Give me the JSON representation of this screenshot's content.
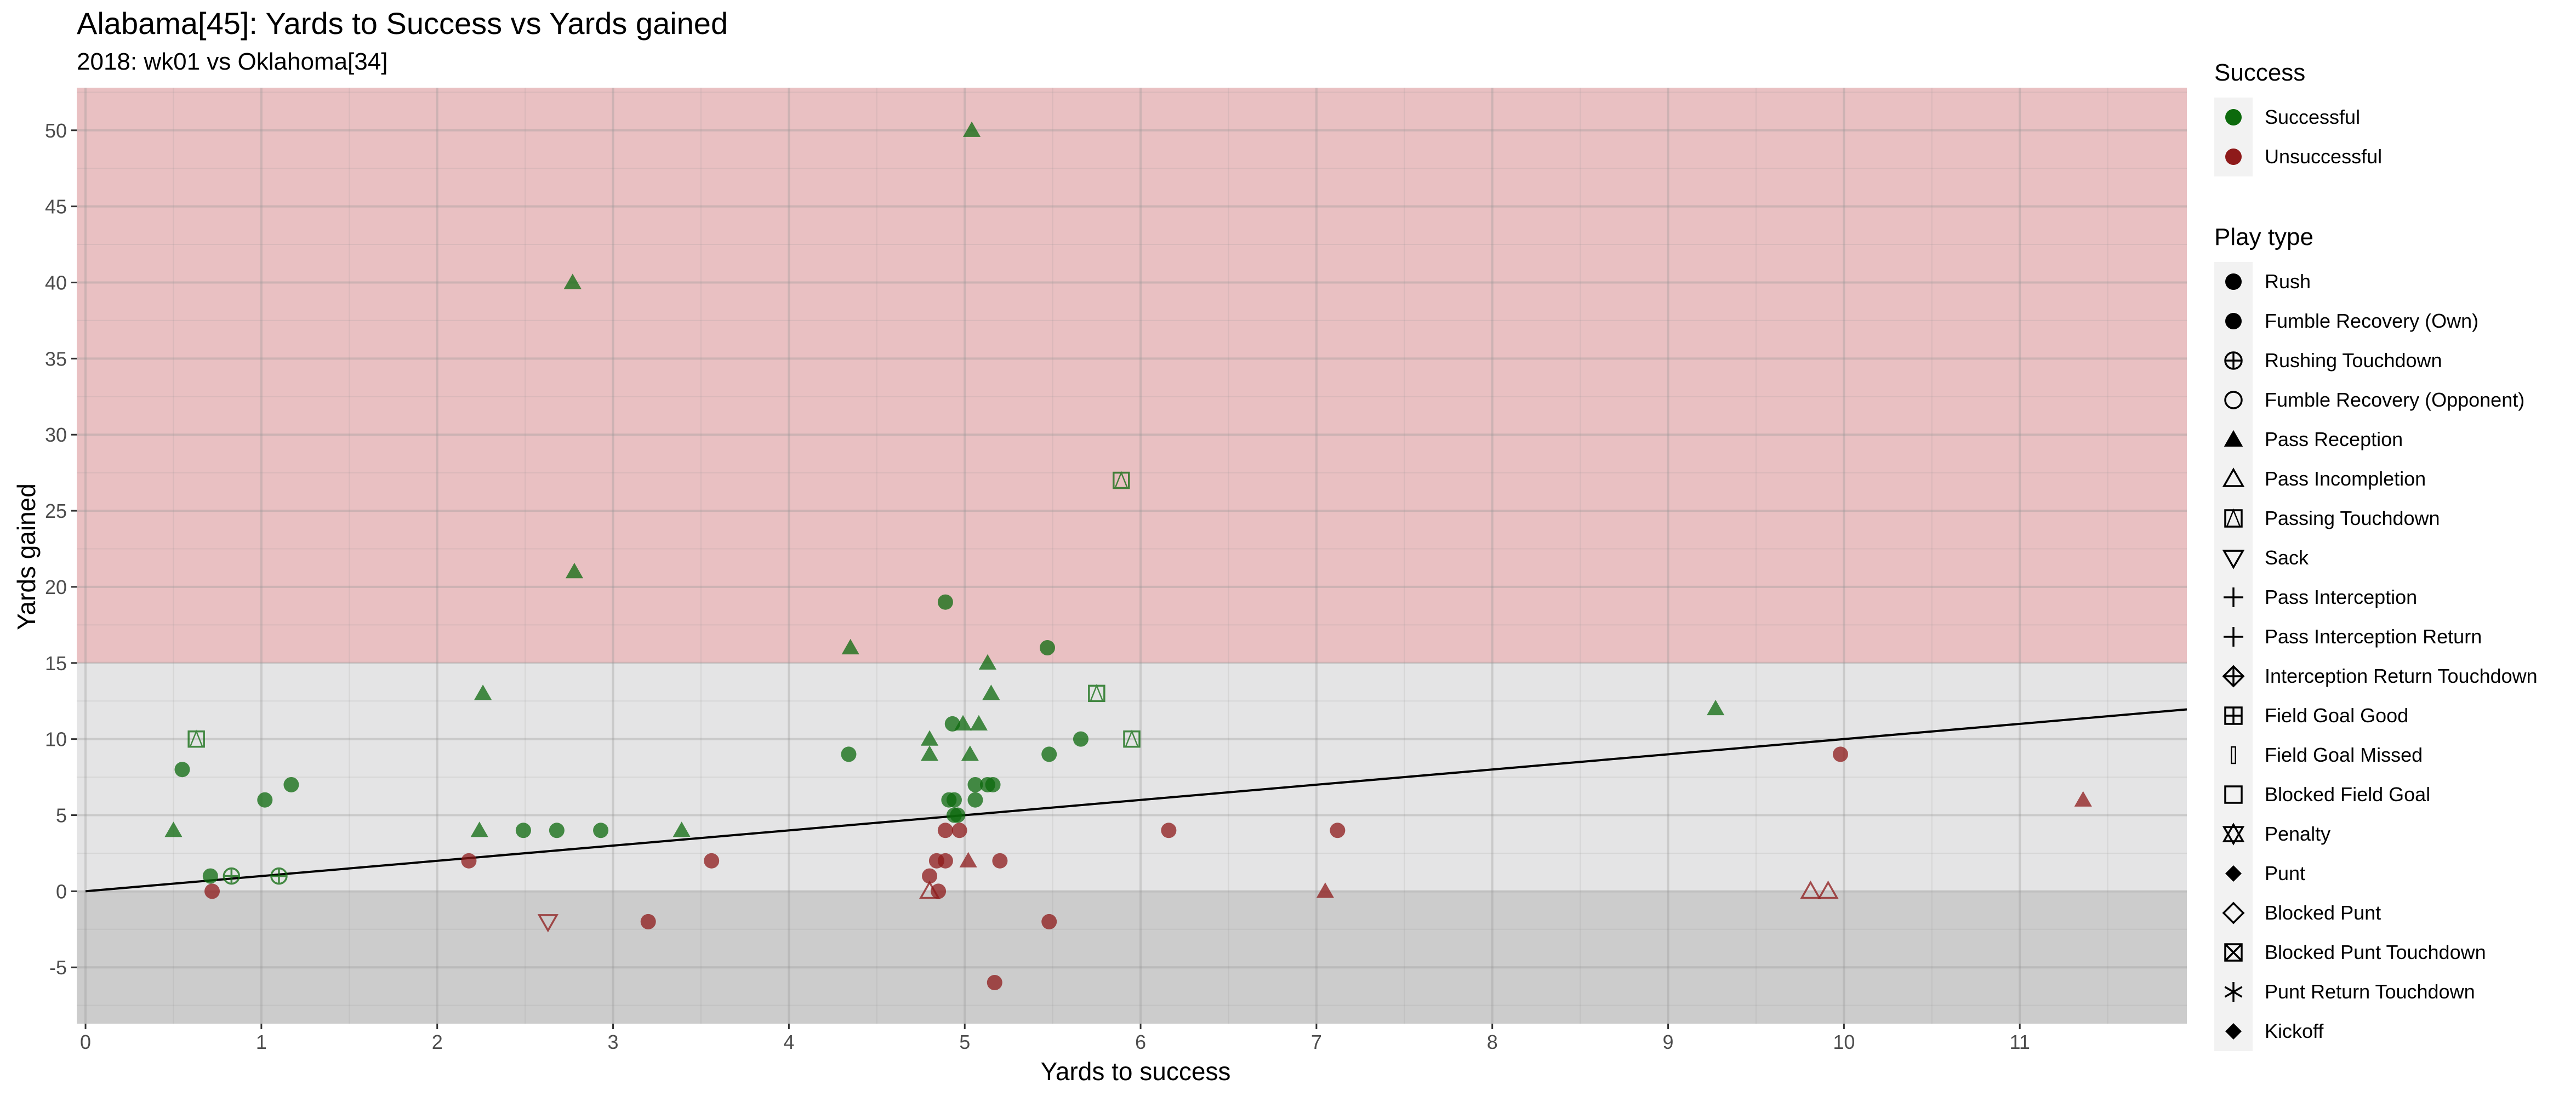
{
  "title": "Alabama[45]: Yards to Success vs Yards gained",
  "subtitle": "2018: wk01 vs Oklahoma[34]",
  "chart_data": {
    "type": "scatter",
    "title": "Alabama[45]: Yards to Success vs Yards gained",
    "subtitle": "2018: wk01 vs Oklahoma[34]",
    "xlabel": "Yards to success",
    "ylabel": "Yards gained",
    "xlim": [
      -0.05,
      11.95
    ],
    "ylim": [
      -8.7,
      52.8
    ],
    "x_ticks": [
      "0",
      "1",
      "2",
      "3",
      "4",
      "5",
      "6",
      "7",
      "8",
      "9",
      "10",
      "11"
    ],
    "y_ticks": [
      "-5",
      "0",
      "5",
      "10",
      "15",
      "20",
      "25",
      "30",
      "35",
      "40",
      "45",
      "50"
    ],
    "grid": true,
    "legend_position": "right",
    "bands": [
      {
        "from": -8.7,
        "to": 0,
        "color": "#cccccc"
      },
      {
        "from": 0,
        "to": 15,
        "color": "#e4e4e5"
      },
      {
        "from": 15,
        "to": 52.8,
        "color": "#e9c0c2"
      }
    ],
    "reference_line": {
      "x0": 0,
      "y0": 0,
      "slope": 1.0
    },
    "colors": {
      "Successful": "#0c6a0c",
      "Unsuccessful": "#8e1a1a"
    },
    "points": [
      {
        "x": 5.04,
        "y": 50,
        "play": "Pass Reception",
        "success": "Successful"
      },
      {
        "x": 2.77,
        "y": 40,
        "play": "Pass Reception",
        "success": "Successful"
      },
      {
        "x": 5.89,
        "y": 27,
        "play": "Passing Touchdown",
        "success": "Successful"
      },
      {
        "x": 2.78,
        "y": 21,
        "play": "Pass Reception",
        "success": "Successful"
      },
      {
        "x": 4.89,
        "y": 19,
        "play": "Rush",
        "success": "Successful"
      },
      {
        "x": 4.35,
        "y": 16,
        "play": "Pass Reception",
        "success": "Successful"
      },
      {
        "x": 5.47,
        "y": 16,
        "play": "Rush",
        "success": "Successful"
      },
      {
        "x": 5.13,
        "y": 15,
        "play": "Pass Reception",
        "success": "Successful"
      },
      {
        "x": 2.26,
        "y": 13,
        "play": "Pass Reception",
        "success": "Successful"
      },
      {
        "x": 5.15,
        "y": 13,
        "play": "Pass Reception",
        "success": "Successful"
      },
      {
        "x": 5.75,
        "y": 13,
        "play": "Passing Touchdown",
        "success": "Successful"
      },
      {
        "x": 9.27,
        "y": 12,
        "play": "Pass Reception",
        "success": "Successful"
      },
      {
        "x": 4.93,
        "y": 11,
        "play": "Rush",
        "success": "Successful"
      },
      {
        "x": 4.99,
        "y": 11,
        "play": "Pass Reception",
        "success": "Successful"
      },
      {
        "x": 5.08,
        "y": 11,
        "play": "Pass Reception",
        "success": "Successful"
      },
      {
        "x": 0.63,
        "y": 10,
        "play": "Passing Touchdown",
        "success": "Successful"
      },
      {
        "x": 4.8,
        "y": 10,
        "play": "Pass Reception",
        "success": "Successful"
      },
      {
        "x": 5.66,
        "y": 10,
        "play": "Rush",
        "success": "Successful"
      },
      {
        "x": 5.95,
        "y": 10,
        "play": "Passing Touchdown",
        "success": "Successful"
      },
      {
        "x": 4.34,
        "y": 9,
        "play": "Rush",
        "success": "Successful"
      },
      {
        "x": 4.8,
        "y": 9,
        "play": "Pass Reception",
        "success": "Successful"
      },
      {
        "x": 5.03,
        "y": 9,
        "play": "Pass Reception",
        "success": "Successful"
      },
      {
        "x": 5.48,
        "y": 9,
        "play": "Rush",
        "success": "Successful"
      },
      {
        "x": 9.98,
        "y": 9,
        "play": "Rush",
        "success": "Unsuccessful"
      },
      {
        "x": 0.55,
        "y": 8,
        "play": "Rush",
        "success": "Successful"
      },
      {
        "x": 1.17,
        "y": 7,
        "play": "Rush",
        "success": "Successful"
      },
      {
        "x": 5.06,
        "y": 7,
        "play": "Rush",
        "success": "Successful"
      },
      {
        "x": 5.13,
        "y": 7,
        "play": "Rush",
        "success": "Successful"
      },
      {
        "x": 5.16,
        "y": 7,
        "play": "Rush",
        "success": "Successful"
      },
      {
        "x": 1.02,
        "y": 6,
        "play": "Rush",
        "success": "Successful"
      },
      {
        "x": 4.91,
        "y": 6,
        "play": "Rush",
        "success": "Successful"
      },
      {
        "x": 4.94,
        "y": 6,
        "play": "Rush",
        "success": "Successful"
      },
      {
        "x": 5.06,
        "y": 6,
        "play": "Rush",
        "success": "Successful"
      },
      {
        "x": 11.36,
        "y": 6,
        "play": "Pass Reception",
        "success": "Unsuccessful"
      },
      {
        "x": 4.94,
        "y": 5,
        "play": "Rush",
        "success": "Successful"
      },
      {
        "x": 4.96,
        "y": 5,
        "play": "Rush",
        "success": "Successful"
      },
      {
        "x": 0.5,
        "y": 4,
        "play": "Pass Reception",
        "success": "Successful"
      },
      {
        "x": 2.24,
        "y": 4,
        "play": "Pass Reception",
        "success": "Successful"
      },
      {
        "x": 2.49,
        "y": 4,
        "play": "Rush",
        "success": "Successful"
      },
      {
        "x": 2.68,
        "y": 4,
        "play": "Rush",
        "success": "Successful"
      },
      {
        "x": 2.93,
        "y": 4,
        "play": "Rush",
        "success": "Successful"
      },
      {
        "x": 3.39,
        "y": 4,
        "play": "Pass Reception",
        "success": "Successful"
      },
      {
        "x": 4.89,
        "y": 4,
        "play": "Rush",
        "success": "Unsuccessful"
      },
      {
        "x": 4.97,
        "y": 4,
        "play": "Rush",
        "success": "Unsuccessful"
      },
      {
        "x": 6.16,
        "y": 4,
        "play": "Rush",
        "success": "Unsuccessful"
      },
      {
        "x": 7.12,
        "y": 4,
        "play": "Rush",
        "success": "Unsuccessful"
      },
      {
        "x": 2.18,
        "y": 2,
        "play": "Rush",
        "success": "Unsuccessful"
      },
      {
        "x": 3.56,
        "y": 2,
        "play": "Rush",
        "success": "Unsuccessful"
      },
      {
        "x": 4.84,
        "y": 2,
        "play": "Rush",
        "success": "Unsuccessful"
      },
      {
        "x": 4.89,
        "y": 2,
        "play": "Rush",
        "success": "Unsuccessful"
      },
      {
        "x": 5.02,
        "y": 2,
        "play": "Pass Reception",
        "success": "Unsuccessful"
      },
      {
        "x": 5.2,
        "y": 2,
        "play": "Rush",
        "success": "Unsuccessful"
      },
      {
        "x": 0.71,
        "y": 1,
        "play": "Rush",
        "success": "Successful"
      },
      {
        "x": 0.83,
        "y": 1,
        "play": "Rushing Touchdown",
        "success": "Successful"
      },
      {
        "x": 1.1,
        "y": 1,
        "play": "Rushing Touchdown",
        "success": "Successful"
      },
      {
        "x": 4.8,
        "y": 1,
        "play": "Rush",
        "success": "Unsuccessful"
      },
      {
        "x": 0.72,
        "y": 0,
        "play": "Rush",
        "success": "Unsuccessful"
      },
      {
        "x": 4.8,
        "y": 0,
        "play": "Pass Incompletion",
        "success": "Unsuccessful"
      },
      {
        "x": 4.85,
        "y": 0,
        "play": "Rush",
        "success": "Unsuccessful"
      },
      {
        "x": 7.05,
        "y": 0,
        "play": "Pass Reception",
        "success": "Unsuccessful"
      },
      {
        "x": 9.81,
        "y": 0,
        "play": "Pass Incompletion",
        "success": "Unsuccessful"
      },
      {
        "x": 9.91,
        "y": 0,
        "play": "Pass Incompletion",
        "success": "Unsuccessful"
      },
      {
        "x": 2.63,
        "y": -2,
        "play": "Sack",
        "success": "Unsuccessful"
      },
      {
        "x": 3.2,
        "y": -2,
        "play": "Rush",
        "success": "Unsuccessful"
      },
      {
        "x": 5.48,
        "y": -2,
        "play": "Rush",
        "success": "Unsuccessful"
      },
      {
        "x": 5.17,
        "y": -6,
        "play": "Rush",
        "success": "Unsuccessful"
      }
    ]
  },
  "legend": {
    "success_title": "Success",
    "success_items": [
      {
        "label": "Successful",
        "color": "#0c6a0c"
      },
      {
        "label": "Unsuccessful",
        "color": "#8e1a1a"
      }
    ],
    "playtype_title": "Play type",
    "playtype_items": [
      {
        "label": "Rush",
        "shape": "circle-filled"
      },
      {
        "label": "Fumble Recovery (Own)",
        "shape": "circle-filled"
      },
      {
        "label": "Rushing Touchdown",
        "shape": "circle-plus"
      },
      {
        "label": "Fumble Recovery (Opponent)",
        "shape": "circle-open"
      },
      {
        "label": "Pass Reception",
        "shape": "triangle-filled"
      },
      {
        "label": "Pass Incompletion",
        "shape": "triangle-open"
      },
      {
        "label": "Passing Touchdown",
        "shape": "square-triangle"
      },
      {
        "label": "Sack",
        "shape": "triangle-down-open"
      },
      {
        "label": "Pass Interception",
        "shape": "plus"
      },
      {
        "label": "Pass Interception Return",
        "shape": "plus"
      },
      {
        "label": "Interception Return Touchdown",
        "shape": "diamond-plus"
      },
      {
        "label": "Field Goal Good",
        "shape": "square-plus"
      },
      {
        "label": "Field Goal Missed",
        "shape": "bar"
      },
      {
        "label": "Blocked Field Goal",
        "shape": "square-open"
      },
      {
        "label": "Penalty",
        "shape": "star-of-david"
      },
      {
        "label": "Punt",
        "shape": "diamond-filled"
      },
      {
        "label": "Blocked Punt",
        "shape": "diamond-open"
      },
      {
        "label": "Blocked Punt Touchdown",
        "shape": "square-x"
      },
      {
        "label": "Punt Return Touchdown",
        "shape": "asterisk"
      },
      {
        "label": "Kickoff",
        "shape": "diamond-filled"
      }
    ]
  }
}
